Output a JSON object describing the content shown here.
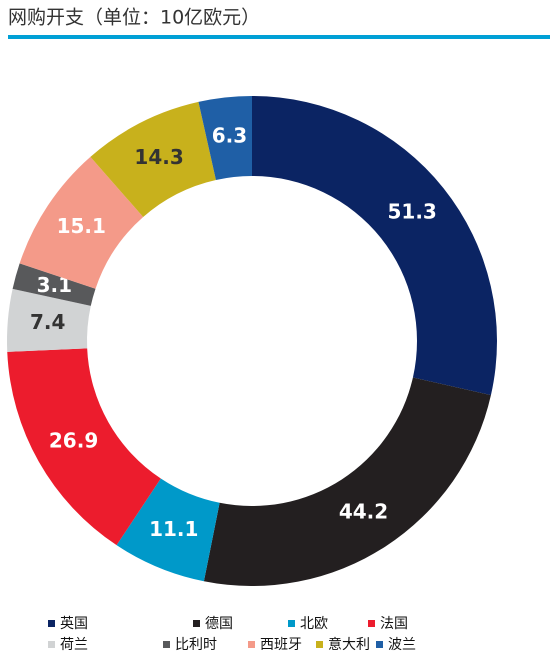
{
  "chart_data": {
    "type": "donut",
    "title": "网购开支（单位：10亿欧元）",
    "series": [
      {
        "name": "英国",
        "value": 51.3,
        "color": "#0b2463",
        "label_color": "#ffffff"
      },
      {
        "name": "德国",
        "value": 44.2,
        "color": "#231f20",
        "label_color": "#ffffff"
      },
      {
        "name": "北欧",
        "value": 11.1,
        "color": "#0099c9",
        "label_color": "#ffffff"
      },
      {
        "name": "法国",
        "value": 26.9,
        "color": "#ec1c2d",
        "label_color": "#ffffff"
      },
      {
        "name": "荷兰",
        "value": 7.4,
        "color": "#d1d3d4",
        "label_color": "#333333"
      },
      {
        "name": "比利时",
        "value": 3.1,
        "color": "#58595b",
        "label_color": "#ffffff"
      },
      {
        "name": "西班牙",
        "value": 15.1,
        "color": "#f49a89",
        "label_color": "#ffffff"
      },
      {
        "name": "意大利",
        "value": 14.3,
        "color": "#c8b11c",
        "label_color": "#333333"
      },
      {
        "name": "波兰",
        "value": 6.3,
        "color": "#1f5fa6",
        "label_color": "#ffffff"
      }
    ]
  }
}
